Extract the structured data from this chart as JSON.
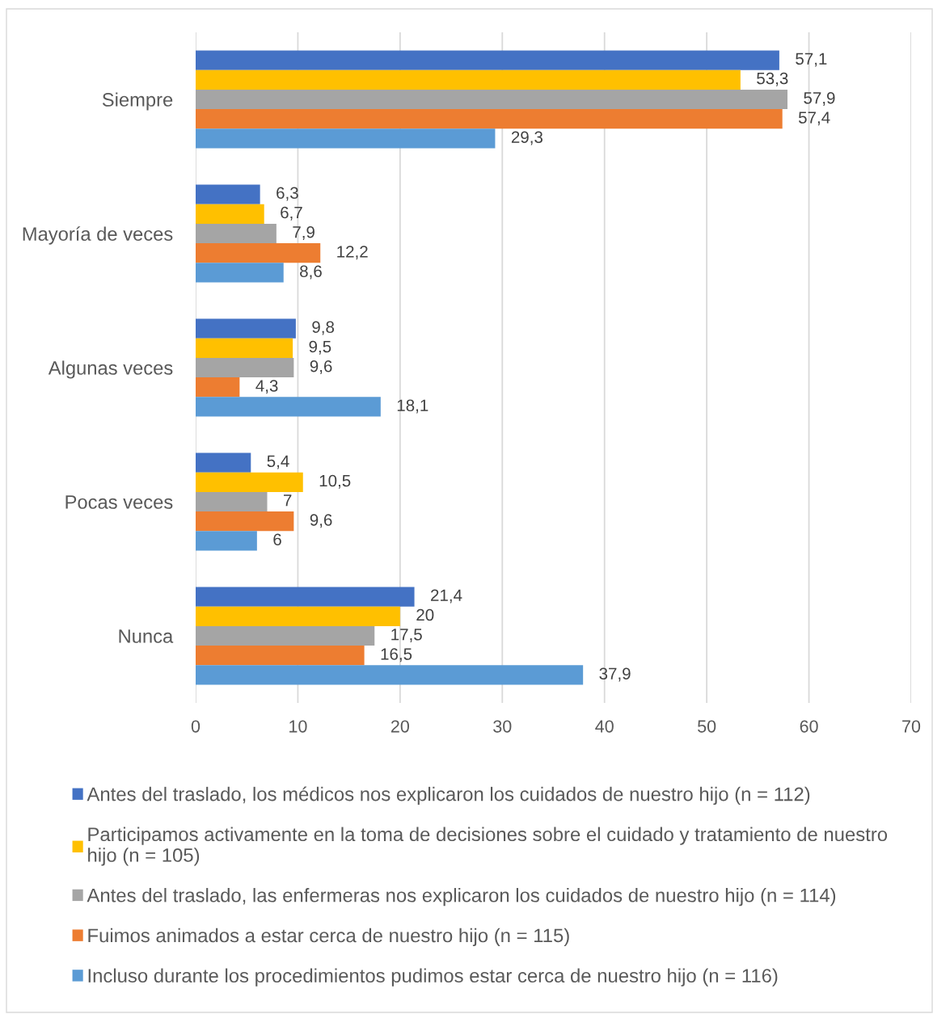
{
  "chart_data": {
    "type": "bar",
    "orientation": "horizontal",
    "categories": [
      "Siempre",
      "Mayoría de veces",
      "Algunas veces",
      "Pocas veces",
      "Nunca"
    ],
    "series": [
      {
        "name": "Antes del traslado, los médicos nos explicaron los cuidados de nuestro hijo (n = 112)",
        "color": "#4472c4",
        "values": [
          57.1,
          6.3,
          9.8,
          5.4,
          21.4
        ],
        "value_labels": [
          "57,1",
          "6,3",
          "9,8",
          "5,4",
          "21,4"
        ]
      },
      {
        "name": "Participamos activamente en la toma de decisiones sobre el cuidado y tratamiento de nuestro hijo (n = 105)",
        "color": "#ffc000",
        "values": [
          53.3,
          6.7,
          9.5,
          10.5,
          20
        ],
        "value_labels": [
          "53,3",
          "6,7",
          "9,5",
          "10,5",
          "20"
        ]
      },
      {
        "name": "Antes del traslado, las enfermeras nos explicaron los cuidados de nuestro hijo (n = 114)",
        "color": "#a5a5a5",
        "values": [
          57.9,
          7.9,
          9.6,
          7,
          17.5
        ],
        "value_labels": [
          "57,9",
          "7,9",
          "9,6",
          "7",
          "17,5"
        ]
      },
      {
        "name": "Fuimos animados a estar cerca de nuestro hijo (n = 115)",
        "color": "#ed7d31",
        "values": [
          57.4,
          12.2,
          4.3,
          9.6,
          16.5
        ],
        "value_labels": [
          "57,4",
          "12,2",
          "4,3",
          "9,6",
          "16,5"
        ]
      },
      {
        "name": "Incluso durante los procedimientos pudimos estar cerca de nuestro hijo (n = 116)",
        "color": "#5b9bd5",
        "values": [
          29.3,
          8.6,
          18.1,
          6,
          37.9
        ],
        "value_labels": [
          "29,3",
          "8,6",
          "18,1",
          "6",
          "37,9"
        ]
      }
    ],
    "xlim": [
      0,
      70
    ],
    "xticks": [
      0,
      10,
      20,
      30,
      40,
      50,
      60,
      70
    ],
    "grid": "x",
    "legend": "bottom"
  }
}
